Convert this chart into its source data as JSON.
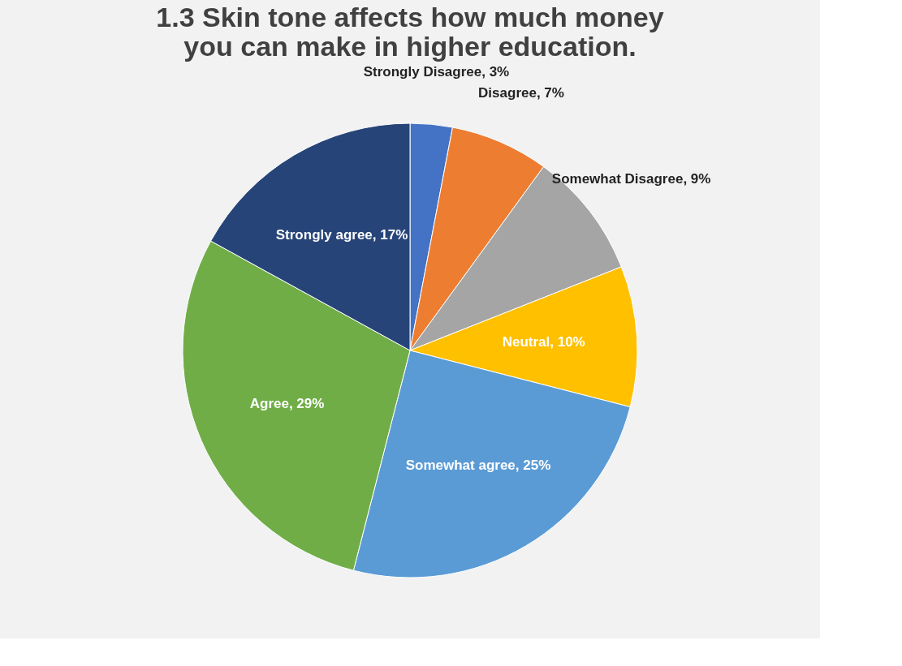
{
  "chart_data": {
    "type": "pie",
    "title": "1.3 Skin tone affects how much money you can make in higher education.",
    "categories": [
      "Strongly Disagree",
      "Disagree",
      "Somewhat Disagree",
      "Neutral",
      "Somewhat agree",
      "Agree",
      "Strongly agree"
    ],
    "values": [
      3,
      7,
      9,
      10,
      25,
      29,
      17
    ],
    "colors": [
      "#4472c4",
      "#ed7d31",
      "#a5a5a5",
      "#ffc000",
      "#5b9bd5",
      "#70ad47",
      "#264478"
    ],
    "value_labels": [
      "3%",
      "7%",
      "9%",
      "10%",
      "25%",
      "29%",
      "17%"
    ],
    "legend": false
  }
}
